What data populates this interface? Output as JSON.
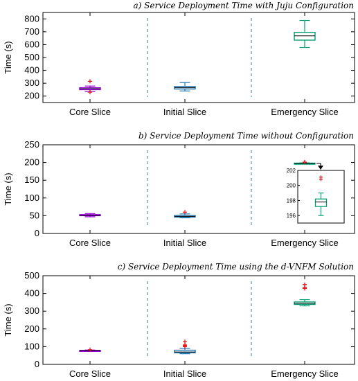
{
  "chart_data": [
    {
      "type": "box",
      "title": "a) Service Deployment Time with Juju Configuration",
      "ylabel": "Time (s)",
      "xlabel": "",
      "ylim": [
        150,
        850
      ],
      "yticks": [
        200,
        300,
        400,
        500,
        600,
        700,
        800
      ],
      "grid": false,
      "categories": [
        "Core Slice",
        "Initial Slice",
        "Emergency Slice"
      ],
      "series": [
        {
          "category": "Core Slice",
          "color": "#9400d3",
          "whisker_low": 235,
          "q1": 250,
          "median": 257,
          "q3": 265,
          "whisker_high": 278,
          "outliers": [
            230,
            315
          ]
        },
        {
          "category": "Initial Slice",
          "color": "#1f78b4",
          "whisker_low": 240,
          "q1": 255,
          "median": 265,
          "q3": 275,
          "whisker_high": 305,
          "outliers": []
        },
        {
          "category": "Emergency Slice",
          "color": "#009e73",
          "whisker_low": 578,
          "q1": 635,
          "median": 668,
          "q3": 695,
          "whisker_high": 788,
          "outliers": []
        }
      ]
    },
    {
      "type": "box",
      "title": "b) Service Deployment Time without Configuration",
      "ylabel": "Time (s)",
      "xlabel": "",
      "ylim": [
        0,
        250
      ],
      "yticks": [
        0,
        50,
        100,
        150,
        200,
        250
      ],
      "grid": false,
      "categories": [
        "Core Slice",
        "Initial Slice",
        "Emergency Slice"
      ],
      "series": [
        {
          "category": "Core Slice",
          "color": "#9400d3",
          "whisker_low": 47,
          "q1": 50,
          "median": 51,
          "q3": 53,
          "whisker_high": 56,
          "outliers": []
        },
        {
          "category": "Initial Slice",
          "color": "#1f78b4",
          "whisker_low": 44,
          "q1": 46,
          "median": 48,
          "q3": 51,
          "whisker_high": 55,
          "outliers": [
            60
          ]
        },
        {
          "category": "Emergency Slice",
          "color": "#009e73",
          "whisker_low": 196,
          "q1": 197.2,
          "median": 197.8,
          "q3": 198.2,
          "whisker_high": 199,
          "outliers": [
            200.8,
            201.1
          ]
        }
      ],
      "inset": {
        "target": "Emergency Slice",
        "ylim": [
          195,
          202
        ],
        "yticks": [
          196,
          198,
          200,
          202
        ]
      }
    },
    {
      "type": "box",
      "title": "c) Service Deployment Time using the d-VNFM Solution",
      "ylabel": "Time (s)",
      "xlabel": "",
      "ylim": [
        0,
        500
      ],
      "yticks": [
        0,
        100,
        200,
        300,
        400,
        500
      ],
      "grid": false,
      "categories": [
        "Core Slice",
        "Initial Slice",
        "Emergency Slice"
      ],
      "series": [
        {
          "category": "Core Slice",
          "color": "#9400d3",
          "whisker_low": 76,
          "q1": 77,
          "median": 78,
          "q3": 79,
          "whisker_high": 81,
          "outliers": [
            83
          ]
        },
        {
          "category": "Initial Slice",
          "color": "#1f78b4",
          "whisker_low": 60,
          "q1": 65,
          "median": 70,
          "q3": 80,
          "whisker_high": 90,
          "outliers": [
            100,
            105,
            110,
            128
          ]
        },
        {
          "category": "Emergency Slice",
          "color": "#009e73",
          "whisker_low": 330,
          "q1": 338,
          "median": 344,
          "q3": 352,
          "whisker_high": 365,
          "outliers": [
            428,
            435,
            450
          ]
        }
      ]
    }
  ]
}
